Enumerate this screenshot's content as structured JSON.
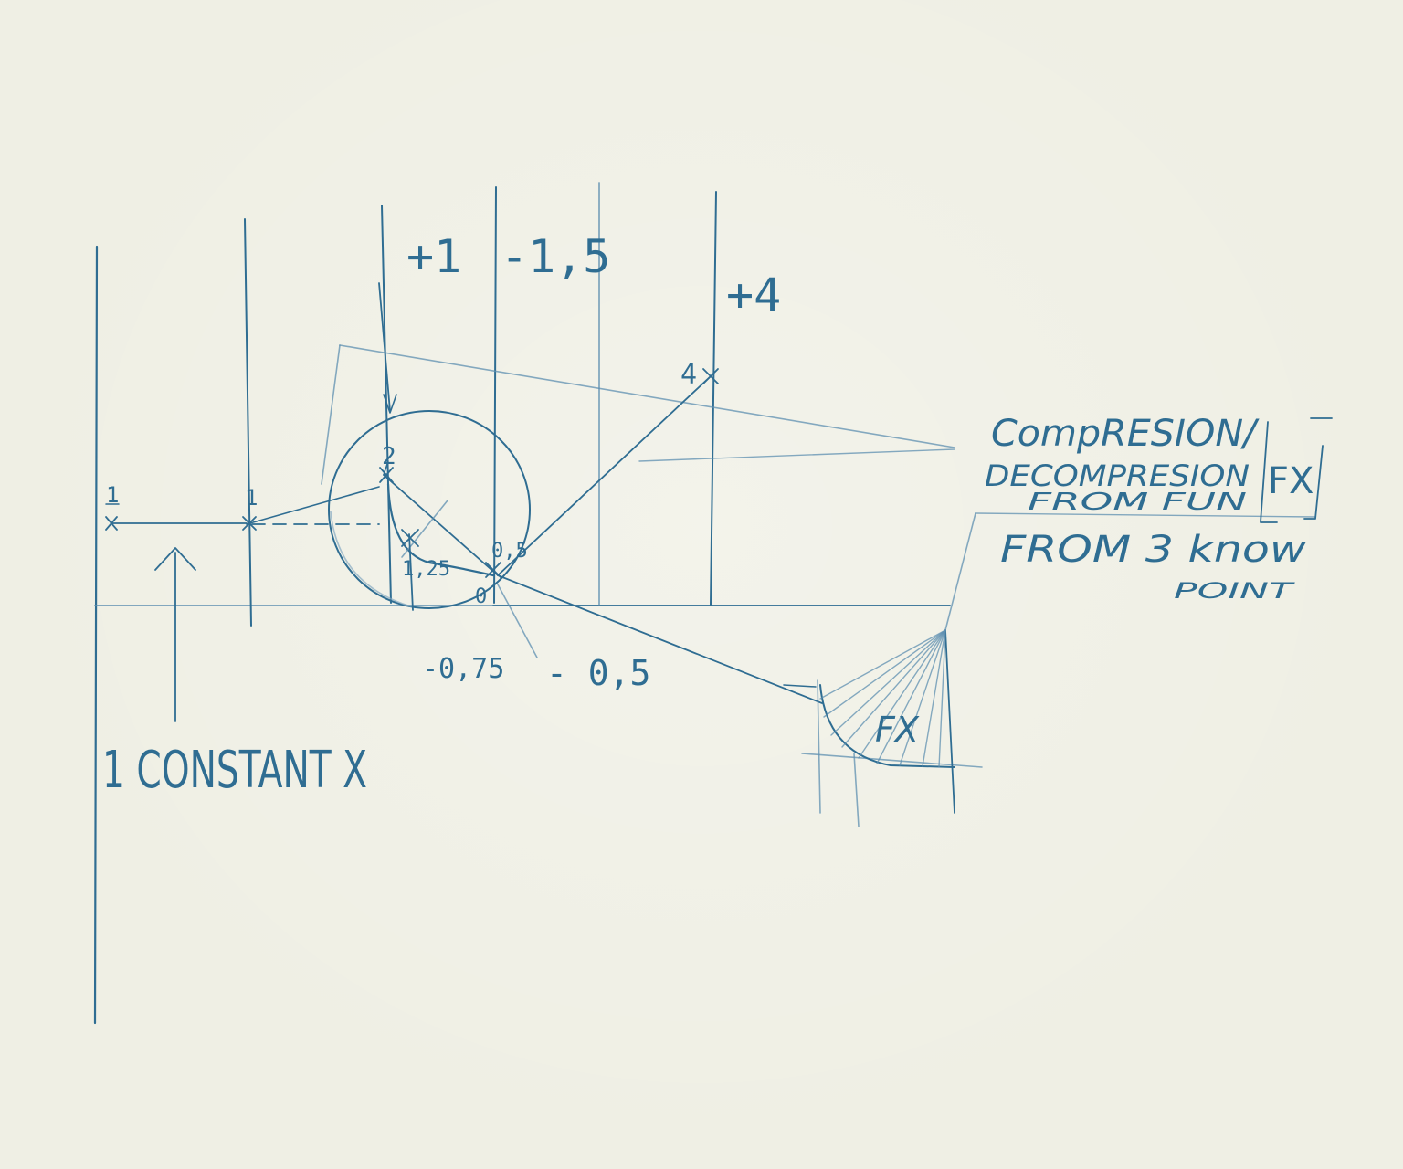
{
  "labels": {
    "plus_one": "+1",
    "minus_one_point_five": "-1,5",
    "plus_four": "+4",
    "four": "4",
    "one_left": "1",
    "one_mid": "1",
    "two": "2",
    "point_two_five": "1,25",
    "point_five": "0,5",
    "zero": "0",
    "minus_point_seven_five": "-0,75",
    "minus_point_five": "- 0,5",
    "constant": "1 CONSTANT X",
    "compression": "CompRESION/",
    "decompression": "DECOMPRESION",
    "from_fun": "FROM FUN",
    "fx_box": "FX",
    "from_three": "FROM 3 know",
    "point": "POINT",
    "fx_graph": "FX"
  },
  "colors": {
    "ink": "#2f6d92",
    "paper": "#efefe4"
  }
}
